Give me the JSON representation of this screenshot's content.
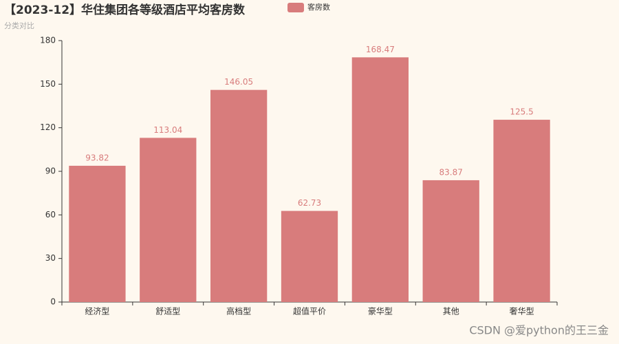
{
  "chart_data": {
    "type": "bar",
    "title": "【2023-12】华住集团各等级酒店平均客房数",
    "subtitle": "分类对比",
    "categories": [
      "经济型",
      "舒适型",
      "高档型",
      "超值平价",
      "豪华型",
      "其他",
      "奢华型"
    ],
    "series": [
      {
        "name": "客房数",
        "color": "#d87c7c",
        "values": [
          93.82,
          113.04,
          146.05,
          62.73,
          168.47,
          83.87,
          125.5
        ]
      }
    ],
    "ylim": [
      0,
      180
    ],
    "yticks": [
      0,
      30,
      60,
      90,
      120,
      150,
      180
    ],
    "grid": false,
    "legend": "top",
    "watermark": "CSDN @爱python的王三金"
  }
}
